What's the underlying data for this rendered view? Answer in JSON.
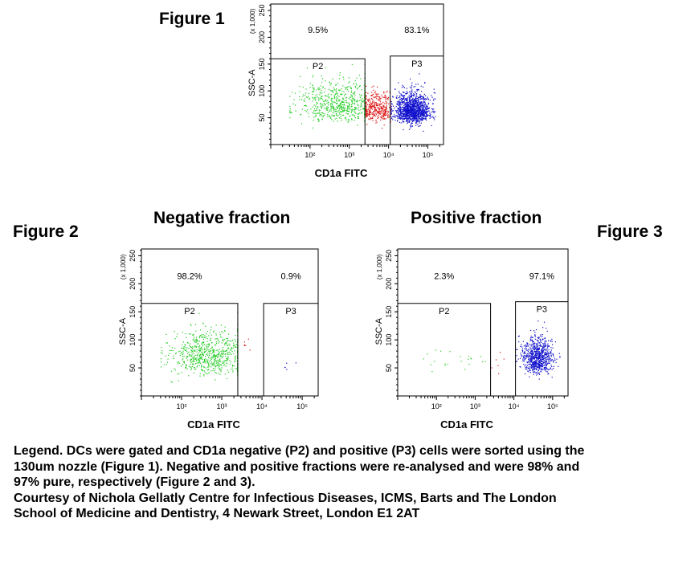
{
  "labels": {
    "figure1": "Figure 1",
    "figure2": "Figure 2",
    "figure3": "Figure 3",
    "negative_title": "Negative fraction",
    "positive_title": "Positive fraction"
  },
  "legend": {
    "line1": "Legend. DCs were gated and CD1a negative (P2) and positive (P3) cells were sorted using the",
    "line2": "130um nozzle (Figure 1). Negative and positive fractions were re-analysed and were 98% and",
    "line3": "97% pure, respectively (Figure 2 and 3).",
    "line4": "Courtesy of Nichola Gellatly Centre for Infectious Diseases, ICMS, Barts and The London",
    "line5": "School of Medicine and Dentistry, 4 Newark Street, London E1 2AT"
  },
  "colors": {
    "p2": "#22cc22",
    "between": "#dd1111",
    "p3": "#1111cc",
    "axis": "#000000"
  },
  "chart_data": [
    {
      "type": "scatter",
      "id": "figure1",
      "xlabel": "CD1a FITC",
      "ylabel": "SSC-A",
      "y_multiplier_label": "(x 1,000)",
      "x_scale": "log",
      "xlim": [
        10,
        250000
      ],
      "ylim": [
        0,
        262
      ],
      "x_ticks": [
        {
          "value": 100,
          "label": "10²"
        },
        {
          "value": 1000,
          "label": "10³"
        },
        {
          "value": 10000,
          "label": "10⁴"
        },
        {
          "value": 100000,
          "label": "10⁵"
        }
      ],
      "y_ticks": [
        50,
        100,
        150,
        200,
        250
      ],
      "gates": [
        {
          "name": "P2",
          "x_range": [
            10,
            2500
          ],
          "y_range": [
            0,
            160
          ],
          "percent": "9.5%"
        },
        {
          "name": "P3",
          "x_range": [
            11000,
            250000
          ],
          "y_range": [
            0,
            165
          ],
          "percent": "83.1%"
        }
      ],
      "populations": [
        {
          "gate": "P2",
          "count": 650,
          "x_center": 500,
          "x_spread_log": 0.55,
          "y_center": 70,
          "y_spread": 22
        },
        {
          "gate": "between",
          "count": 380,
          "x_center": 5000,
          "x_spread_log": 0.22,
          "y_center": 62,
          "y_spread": 15
        },
        {
          "gate": "P3",
          "count": 1300,
          "x_center": 40000,
          "x_spread_log": 0.22,
          "y_center": 60,
          "y_spread": 16
        }
      ]
    },
    {
      "type": "scatter",
      "id": "figure2",
      "xlabel": "CD1a FITC",
      "ylabel": "SSC-A",
      "y_multiplier_label": "(x 1,000)",
      "x_scale": "log",
      "xlim": [
        10,
        250000
      ],
      "ylim": [
        0,
        262
      ],
      "x_ticks": [
        {
          "value": 100,
          "label": "10²"
        },
        {
          "value": 1000,
          "label": "10³"
        },
        {
          "value": 10000,
          "label": "10⁴"
        },
        {
          "value": 100000,
          "label": "10⁵"
        }
      ],
      "y_ticks": [
        50,
        100,
        150,
        200,
        250
      ],
      "gates": [
        {
          "name": "P2",
          "x_range": [
            10,
            2500
          ],
          "y_range": [
            0,
            165
          ],
          "percent": "98.2%"
        },
        {
          "name": "P3",
          "x_range": [
            11000,
            250000
          ],
          "y_range": [
            0,
            165
          ],
          "percent": "0.9%"
        }
      ],
      "populations": [
        {
          "gate": "P2",
          "count": 700,
          "x_center": 450,
          "x_spread_log": 0.5,
          "y_center": 65,
          "y_spread": 22
        },
        {
          "gate": "between",
          "count": 6,
          "x_center": 3500,
          "x_spread_log": 0.1,
          "y_center": 70,
          "y_spread": 25
        },
        {
          "gate": "P3",
          "count": 5,
          "x_center": 40000,
          "x_spread_log": 0.2,
          "y_center": 55,
          "y_spread": 10
        }
      ]
    },
    {
      "type": "scatter",
      "id": "figure3",
      "xlabel": "CD1a FITC",
      "ylabel": "SSC-A",
      "y_multiplier_label": "(x 1,000)",
      "x_scale": "log",
      "xlim": [
        10,
        250000
      ],
      "ylim": [
        0,
        262
      ],
      "x_ticks": [
        {
          "value": 100,
          "label": "10²"
        },
        {
          "value": 1000,
          "label": "10³"
        },
        {
          "value": 10000,
          "label": "10⁴"
        },
        {
          "value": 100000,
          "label": "10⁵"
        }
      ],
      "y_ticks": [
        50,
        100,
        150,
        200,
        250
      ],
      "gates": [
        {
          "name": "P2",
          "x_range": [
            10,
            2500
          ],
          "y_range": [
            0,
            165
          ],
          "percent": "2.3%"
        },
        {
          "name": "P3",
          "x_range": [
            11000,
            250000
          ],
          "y_range": [
            0,
            168
          ],
          "percent": "97.1%"
        }
      ],
      "populations": [
        {
          "gate": "P2",
          "count": 22,
          "x_center": 300,
          "x_spread_log": 0.55,
          "y_center": 60,
          "y_spread": 15
        },
        {
          "gate": "between",
          "count": 6,
          "x_center": 4000,
          "x_spread_log": 0.12,
          "y_center": 55,
          "y_spread": 12
        },
        {
          "gate": "P3",
          "count": 750,
          "x_center": 40000,
          "x_spread_log": 0.2,
          "y_center": 62,
          "y_spread": 18
        }
      ]
    }
  ]
}
